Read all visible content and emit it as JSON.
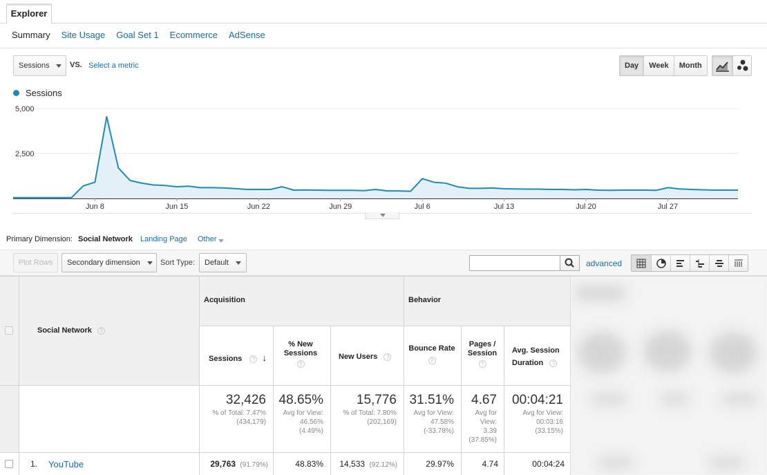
{
  "header": {
    "tab_label": "Explorer",
    "subtabs": [
      "Summary",
      "Site Usage",
      "Goal Set 1",
      "Ecommerce",
      "AdSense"
    ]
  },
  "metric_bar": {
    "metric": "Sessions",
    "vs_label": "VS.",
    "select_metric": "Select a metric",
    "periods": [
      "Day",
      "Week",
      "Month"
    ],
    "active_period": "Day"
  },
  "chart_data": {
    "type": "area",
    "legend": "Sessions",
    "color": "#1f8bb2",
    "y_ticks": [
      "5,000",
      "2,500"
    ],
    "ylim": [
      0,
      5000
    ],
    "x_tick_labels": [
      "Jun 8",
      "Jun 15",
      "Jun 22",
      "Jun 29",
      "Jul 6",
      "Jul 13",
      "Jul 20",
      "Jul 27"
    ],
    "x_tick_days": [
      8,
      15,
      22,
      29,
      36,
      43,
      50,
      57
    ],
    "x_start_day": 1,
    "values": [
      50,
      50,
      50,
      50,
      50,
      50,
      700,
      900,
      4550,
      1700,
      1000,
      850,
      750,
      720,
      650,
      680,
      600,
      600,
      580,
      550,
      500,
      500,
      500,
      650,
      460,
      470,
      460,
      450,
      450,
      450,
      430,
      500,
      420,
      420,
      400,
      1100,
      900,
      850,
      650,
      560,
      560,
      580,
      540,
      530,
      520,
      520,
      500,
      500,
      480,
      500,
      460,
      450,
      460,
      460,
      460,
      450,
      600,
      530,
      500,
      480,
      460,
      460,
      460
    ],
    "grid": true
  },
  "primary_dimension": {
    "label": "Primary Dimension:",
    "active": "Social Network",
    "links": [
      "Landing Page",
      "Other"
    ]
  },
  "toolbar": {
    "plot_rows": "Plot Rows",
    "secondary_dimension": "Secondary dimension",
    "sort_label": "Sort Type:",
    "sort_value": "Default",
    "search_value": "",
    "advanced": "advanced"
  },
  "table": {
    "dimension_header": "Social Network",
    "group_acquisition": "Acquisition",
    "group_behavior": "Behavior",
    "headers": {
      "sessions": "Sessions",
      "new_sessions_1": "% New",
      "new_sessions_2": "Sessions",
      "new_users": "New Users",
      "bounce_rate": "Bounce Rate",
      "pages_1": "Pages /",
      "pages_2": "Session",
      "duration_1": "Avg. Session",
      "duration_2": "Duration"
    },
    "totals": {
      "sessions": "32,426",
      "sessions_sub_1": "% of Total: 7.47%",
      "sessions_sub_2": "(434,179)",
      "new_sessions": "48.65%",
      "new_sessions_sub_1": "Avg for View:",
      "new_sessions_sub_2": "46.56%",
      "new_sessions_sub_3": "(4.49%)",
      "new_users": "15,776",
      "new_users_sub_1": "% of Total: 7.80%",
      "new_users_sub_2": "(202,169)",
      "bounce_rate": "31.51%",
      "bounce_rate_sub_1": "Avg for View:",
      "bounce_rate_sub_2": "47.58%",
      "bounce_rate_sub_3": "(-33.78%)",
      "pages": "4.67",
      "pages_sub_1": "Avg for",
      "pages_sub_2": "View:",
      "pages_sub_3": "3.39",
      "pages_sub_4": "(37.85%)",
      "duration": "00:04:21",
      "duration_sub_1": "Avg for View:",
      "duration_sub_2": "00:03:16",
      "duration_sub_3": "(33.15%)"
    },
    "rows": [
      {
        "index": "1.",
        "name": "YouTube",
        "sessions": "29,763",
        "sessions_pct": "(91.79%)",
        "new_sessions": "48.83%",
        "new_users": "14,533",
        "new_users_pct": "(92.12%)",
        "bounce_rate": "29.97%",
        "pages": "4.74",
        "duration": "00:04:24"
      }
    ]
  }
}
